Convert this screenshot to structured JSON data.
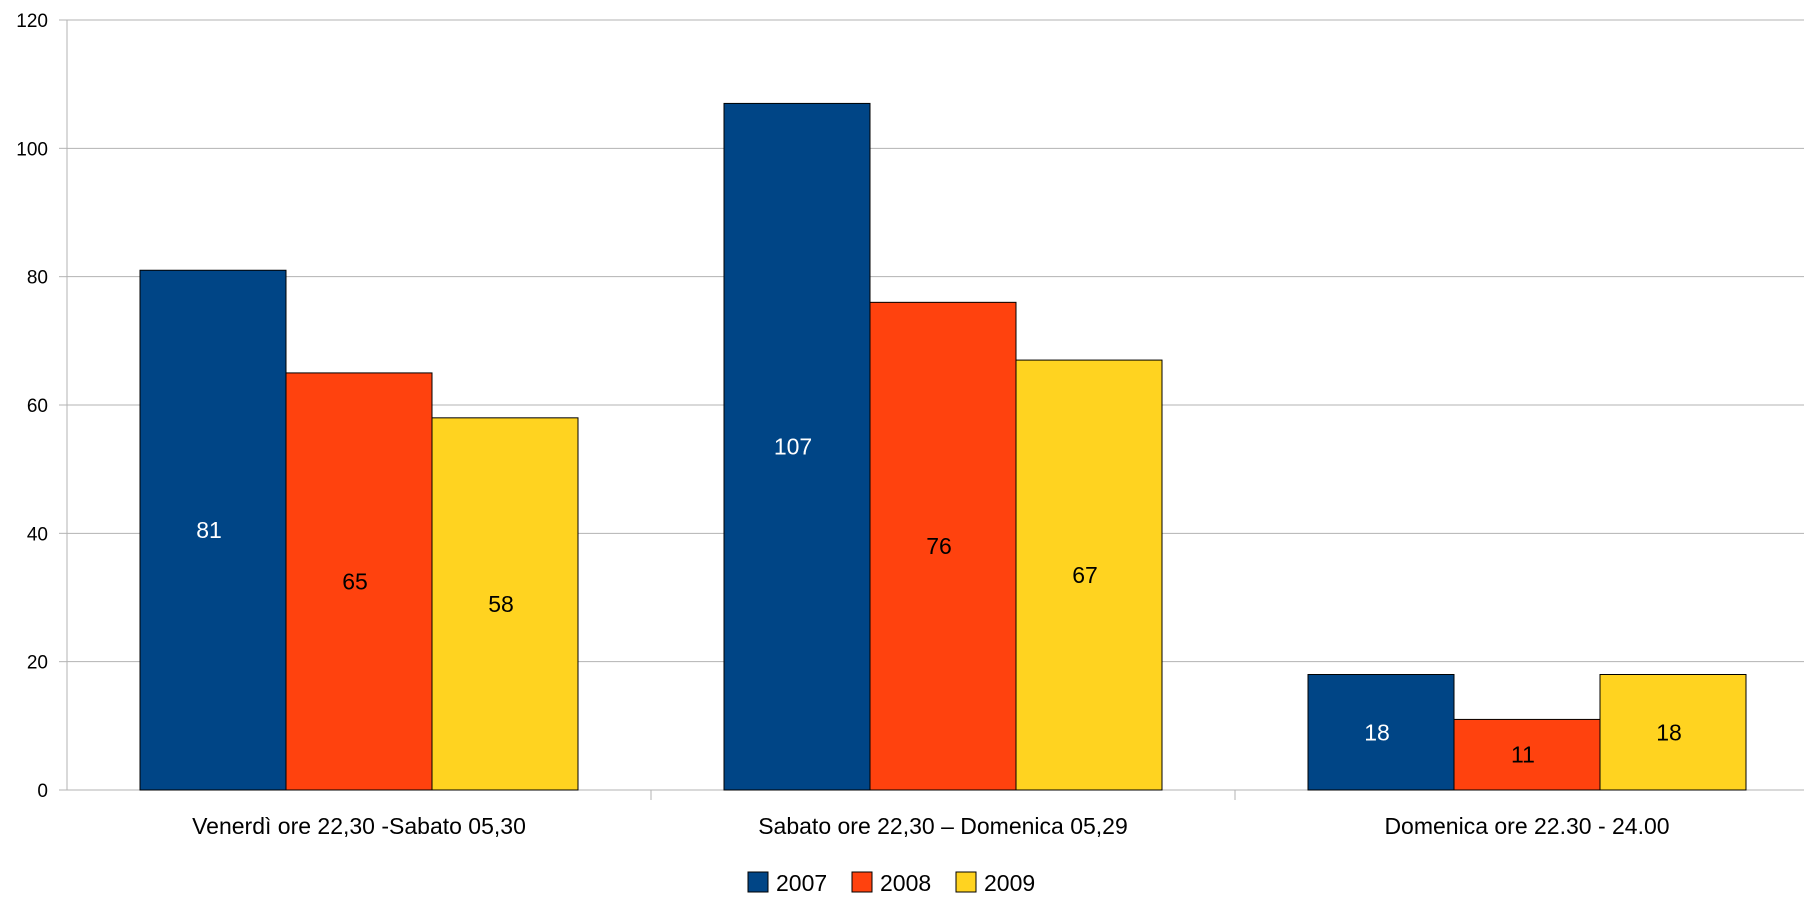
{
  "chart_data": {
    "type": "bar",
    "title": "",
    "xlabel": "",
    "ylabel": "",
    "categories": [
      "Venerdì ore 22,30 -Sabato 05,30",
      "Sabato ore 22,30 – Domenica 05,29",
      "Domenica ore 22.30 - 24.00"
    ],
    "series": [
      {
        "name": "2007",
        "color": "#004586",
        "label_color": "#ffffff",
        "values": [
          81,
          107,
          18
        ]
      },
      {
        "name": "2008",
        "color": "#ff420e",
        "label_color": "#000000",
        "values": [
          65,
          76,
          11
        ]
      },
      {
        "name": "2009",
        "color": "#ffd320",
        "label_color": "#000000",
        "values": [
          58,
          67,
          18
        ]
      }
    ],
    "ylim": [
      0,
      120
    ],
    "yticks": [
      0,
      20,
      40,
      60,
      80,
      100,
      120
    ],
    "grid": true,
    "legend_position": "bottom-center",
    "data_labels": true
  }
}
